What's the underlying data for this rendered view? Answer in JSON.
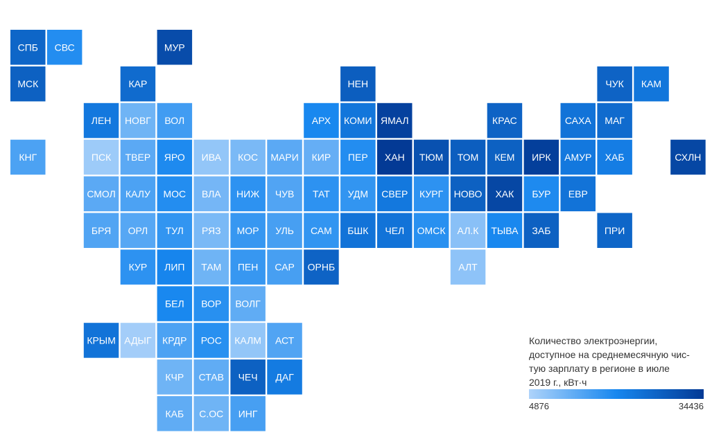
{
  "chart_data": {
    "type": "heatmap",
    "subtype": "tile-grid-map",
    "color_scale": {
      "min": 4876,
      "max": 34436,
      "colors": [
        "#aed3fa",
        "#1787ef",
        "#033a95"
      ]
    },
    "legend": {
      "title": "Количество электроэнергии, доступное на среднемесячную чистую зарплату в регионе в июле 2019 г., кВт·ч",
      "title_lines": [
        "Количество электроэнергии,",
        "доступное на среднемесячную чис-",
        "тую зарплату в регионе в июле",
        "2019 г., кВт·ч"
      ],
      "min_label": "4876",
      "max_label": "34436",
      "position": "bottom-right"
    },
    "regions": [
      {
        "label": "СПБ",
        "col": 0,
        "row": 0,
        "value": 26000
      },
      {
        "label": "СВС",
        "col": 1,
        "row": 0,
        "value": 18500
      },
      {
        "label": "МУР",
        "col": 4,
        "row": 0,
        "value": 31000
      },
      {
        "label": "МСК",
        "col": 0,
        "row": 1,
        "value": 27000
      },
      {
        "label": "КАР",
        "col": 3,
        "row": 1,
        "value": 25000
      },
      {
        "label": "НЕН",
        "col": 9,
        "row": 1,
        "value": 27500
      },
      {
        "label": "ЧУК",
        "col": 16,
        "row": 1,
        "value": 26500
      },
      {
        "label": "КАМ",
        "col": 17,
        "row": 1,
        "value": 23000
      },
      {
        "label": "ЛЕН",
        "col": 2,
        "row": 2,
        "value": 22500
      },
      {
        "label": "НОВГ",
        "col": 3,
        "row": 2,
        "value": 11000
      },
      {
        "label": "ВОЛ",
        "col": 4,
        "row": 2,
        "value": 15500
      },
      {
        "label": "АРХ",
        "col": 8,
        "row": 2,
        "value": 19500
      },
      {
        "label": "КОМИ",
        "col": 9,
        "row": 2,
        "value": 23000
      },
      {
        "label": "ЯМАЛ",
        "col": 10,
        "row": 2,
        "value": 33000
      },
      {
        "label": "КРАС",
        "col": 13,
        "row": 2,
        "value": 26500
      },
      {
        "label": "САХА",
        "col": 15,
        "row": 2,
        "value": 23500
      },
      {
        "label": "МАГ",
        "col": 16,
        "row": 2,
        "value": 25000
      },
      {
        "label": "КНГ",
        "col": 0,
        "row": 3,
        "value": 14500
      },
      {
        "label": "ПСК",
        "col": 2,
        "row": 3,
        "value": 6500
      },
      {
        "label": "ТВЕР",
        "col": 3,
        "row": 3,
        "value": 13000
      },
      {
        "label": "ЯРО",
        "col": 4,
        "row": 3,
        "value": 19000
      },
      {
        "label": "ИВА",
        "col": 5,
        "row": 3,
        "value": 7500
      },
      {
        "label": "КОС",
        "col": 6,
        "row": 3,
        "value": 10000
      },
      {
        "label": "МАРИ",
        "col": 7,
        "row": 3,
        "value": 13000
      },
      {
        "label": "КИР",
        "col": 8,
        "row": 3,
        "value": 12000
      },
      {
        "label": "ПЕР",
        "col": 9,
        "row": 3,
        "value": 18500
      },
      {
        "label": "ХАН",
        "col": 10,
        "row": 3,
        "value": 34436
      },
      {
        "label": "ТЮМ",
        "col": 11,
        "row": 3,
        "value": 30000
      },
      {
        "label": "ТОМ",
        "col": 12,
        "row": 3,
        "value": 27500
      },
      {
        "label": "КЕМ",
        "col": 13,
        "row": 3,
        "value": 27000
      },
      {
        "label": "ИРК",
        "col": 14,
        "row": 3,
        "value": 33500
      },
      {
        "label": "АМУР",
        "col": 15,
        "row": 3,
        "value": 22500
      },
      {
        "label": "ХАБ",
        "col": 16,
        "row": 3,
        "value": 21500
      },
      {
        "label": "СХЛН",
        "col": 18,
        "row": 3,
        "value": 32000
      },
      {
        "label": "СМОЛ",
        "col": 2,
        "row": 4,
        "value": 13000
      },
      {
        "label": "КАЛУ",
        "col": 3,
        "row": 4,
        "value": 14500
      },
      {
        "label": "МОС",
        "col": 4,
        "row": 4,
        "value": 18500
      },
      {
        "label": "ВЛА",
        "col": 5,
        "row": 4,
        "value": 10500
      },
      {
        "label": "НИЖ",
        "col": 6,
        "row": 4,
        "value": 17500
      },
      {
        "label": "ЧУВ",
        "col": 7,
        "row": 4,
        "value": 14000
      },
      {
        "label": "ТАТ",
        "col": 8,
        "row": 4,
        "value": 17500
      },
      {
        "label": "УДМ",
        "col": 9,
        "row": 4,
        "value": 17000
      },
      {
        "label": "СВЕР",
        "col": 10,
        "row": 4,
        "value": 22500
      },
      {
        "label": "КУРГ",
        "col": 11,
        "row": 4,
        "value": 17500
      },
      {
        "label": "НОВО",
        "col": 12,
        "row": 4,
        "value": 27000
      },
      {
        "label": "ХАК",
        "col": 13,
        "row": 4,
        "value": 32000
      },
      {
        "label": "БУР",
        "col": 14,
        "row": 4,
        "value": 19000
      },
      {
        "label": "ЕВР",
        "col": 15,
        "row": 4,
        "value": 23500
      },
      {
        "label": "БРЯ",
        "col": 2,
        "row": 5,
        "value": 14000
      },
      {
        "label": "ОРЛ",
        "col": 3,
        "row": 5,
        "value": 13500
      },
      {
        "label": "ТУЛ",
        "col": 4,
        "row": 5,
        "value": 17000
      },
      {
        "label": "РЯЗ",
        "col": 5,
        "row": 5,
        "value": 10000
      },
      {
        "label": "МОР",
        "col": 6,
        "row": 5,
        "value": 16500
      },
      {
        "label": "УЛЬ",
        "col": 7,
        "row": 5,
        "value": 15000
      },
      {
        "label": "САМ",
        "col": 8,
        "row": 5,
        "value": 17000
      },
      {
        "label": "БШК",
        "col": 9,
        "row": 5,
        "value": 23500
      },
      {
        "label": "ЧЕЛ",
        "col": 10,
        "row": 5,
        "value": 23500
      },
      {
        "label": "ОМСК",
        "col": 11,
        "row": 5,
        "value": 18000
      },
      {
        "label": "АЛ.К",
        "col": 12,
        "row": 5,
        "value": 8500
      },
      {
        "label": "ТЫВА",
        "col": 13,
        "row": 5,
        "value": 19500
      },
      {
        "label": "ЗАБ",
        "col": 14,
        "row": 5,
        "value": 27000
      },
      {
        "label": "ПРИ",
        "col": 16,
        "row": 5,
        "value": 26000
      },
      {
        "label": "КУР",
        "col": 3,
        "row": 6,
        "value": 17500
      },
      {
        "label": "ЛИП",
        "col": 4,
        "row": 6,
        "value": 20000
      },
      {
        "label": "ТАМ",
        "col": 5,
        "row": 6,
        "value": 11000
      },
      {
        "label": "ПЕН",
        "col": 6,
        "row": 6,
        "value": 16500
      },
      {
        "label": "САР",
        "col": 7,
        "row": 6,
        "value": 15000
      },
      {
        "label": "ОРНБ",
        "col": 8,
        "row": 6,
        "value": 26500
      },
      {
        "label": "АЛТ",
        "col": 12,
        "row": 6,
        "value": 8000
      },
      {
        "label": "БЕЛ",
        "col": 4,
        "row": 7,
        "value": 19500
      },
      {
        "label": "ВОР",
        "col": 5,
        "row": 7,
        "value": 18000
      },
      {
        "label": "ВОЛГ",
        "col": 6,
        "row": 7,
        "value": 12500
      },
      {
        "label": "КРЫМ",
        "col": 2,
        "row": 8,
        "value": 23500
      },
      {
        "label": "АДЫГ",
        "col": 3,
        "row": 8,
        "value": 6000
      },
      {
        "label": "КРДР",
        "col": 4,
        "row": 8,
        "value": 14500
      },
      {
        "label": "РОС",
        "col": 5,
        "row": 8,
        "value": 18000
      },
      {
        "label": "КАЛМ",
        "col": 6,
        "row": 8,
        "value": 7500
      },
      {
        "label": "АСТ",
        "col": 7,
        "row": 8,
        "value": 14000
      },
      {
        "label": "КЧР",
        "col": 4,
        "row": 9,
        "value": 11000
      },
      {
        "label": "СТАВ",
        "col": 5,
        "row": 9,
        "value": 12500
      },
      {
        "label": "ЧЕЧ",
        "col": 6,
        "row": 9,
        "value": 27000
      },
      {
        "label": "ДАГ",
        "col": 7,
        "row": 9,
        "value": 22000
      },
      {
        "label": "КАБ",
        "col": 4,
        "row": 10,
        "value": 12500
      },
      {
        "label": "С.ОС",
        "col": 5,
        "row": 10,
        "value": 11000
      },
      {
        "label": "ИНГ",
        "col": 6,
        "row": 10,
        "value": 15000
      }
    ]
  }
}
